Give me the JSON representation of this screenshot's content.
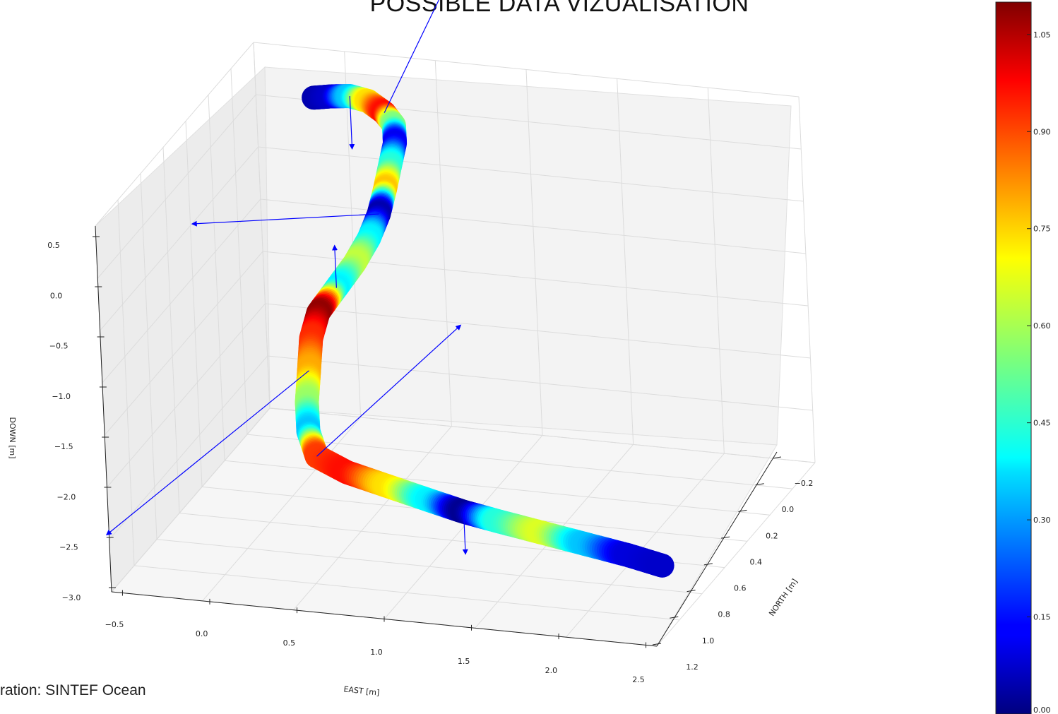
{
  "header": {
    "title": "POSSIBLE DATA VIZUALISATION"
  },
  "footer": {
    "credit": "ration: SINTEF Ocean"
  },
  "chart_data": {
    "type": "line",
    "subtype": "3d-tube-trajectory",
    "title": "POSSIBLE DATA VIZUALISATION",
    "xlabel": "EAST [m]",
    "ylabel": "NORTH [m]",
    "zlabel": "DOWN [m]",
    "x_ticks": [
      "−0.5",
      "0.0",
      "0.5",
      "1.0",
      "1.5",
      "2.0",
      "2.5"
    ],
    "y_ticks": [
      "−0.2",
      "0.0",
      "0.2",
      "0.4",
      "0.6",
      "0.8",
      "1.0",
      "1.2"
    ],
    "z_ticks": [
      "0.5",
      "0.0",
      "−0.5",
      "−1.0",
      "−1.5",
      "−2.0",
      "−2.5",
      "−3.0"
    ],
    "xlim": [
      -0.5,
      2.5
    ],
    "ylim": [
      -0.2,
      1.2
    ],
    "zlim": [
      -3.0,
      0.5
    ],
    "grid": true,
    "colormap": "jet",
    "colorbar": {
      "ticks": [
        "1.05",
        "0.90",
        "0.75",
        "0.60",
        "0.45",
        "0.30",
        "0.15",
        "0.00"
      ],
      "range": [
        0.0,
        1.1
      ]
    },
    "trajectory": [
      {
        "e": -0.05,
        "n": 0.0,
        "d": 0.3,
        "c": 0.05
      },
      {
        "e": 0.05,
        "n": 0.0,
        "d": 0.33,
        "c": 0.08
      },
      {
        "e": 0.15,
        "n": 0.0,
        "d": 0.35,
        "c": 0.35
      },
      {
        "e": 0.25,
        "n": 0.0,
        "d": 0.32,
        "c": 0.72
      },
      {
        "e": 0.35,
        "n": 0.02,
        "d": 0.25,
        "c": 0.95
      },
      {
        "e": 0.42,
        "n": 0.05,
        "d": 0.18,
        "c": 0.55
      },
      {
        "e": 0.44,
        "n": 0.08,
        "d": 0.05,
        "c": 0.12
      },
      {
        "e": 0.42,
        "n": 0.1,
        "d": -0.15,
        "c": 0.45
      },
      {
        "e": 0.4,
        "n": 0.12,
        "d": -0.35,
        "c": 0.75
      },
      {
        "e": 0.38,
        "n": 0.15,
        "d": -0.55,
        "c": 0.05
      },
      {
        "e": 0.34,
        "n": 0.18,
        "d": -0.75,
        "c": 0.4
      },
      {
        "e": 0.28,
        "n": 0.22,
        "d": -0.95,
        "c": 0.62
      },
      {
        "e": 0.2,
        "n": 0.26,
        "d": -1.15,
        "c": 0.4
      },
      {
        "e": 0.12,
        "n": 0.3,
        "d": -1.35,
        "c": 1.08
      },
      {
        "e": 0.1,
        "n": 0.34,
        "d": -1.55,
        "c": 0.92
      },
      {
        "e": 0.12,
        "n": 0.4,
        "d": -1.78,
        "c": 0.78
      },
      {
        "e": 0.14,
        "n": 0.46,
        "d": -2.0,
        "c": 0.58
      },
      {
        "e": 0.18,
        "n": 0.52,
        "d": -2.2,
        "c": 0.35
      },
      {
        "e": 0.26,
        "n": 0.58,
        "d": -2.35,
        "c": 0.9
      },
      {
        "e": 0.45,
        "n": 0.62,
        "d": -2.42,
        "c": 0.95
      },
      {
        "e": 0.7,
        "n": 0.66,
        "d": -2.46,
        "c": 0.72
      },
      {
        "e": 0.95,
        "n": 0.7,
        "d": -2.5,
        "c": 0.4
      },
      {
        "e": 1.15,
        "n": 0.72,
        "d": -2.55,
        "c": 0.02
      },
      {
        "e": 1.35,
        "n": 0.74,
        "d": -2.58,
        "c": 0.45
      },
      {
        "e": 1.6,
        "n": 0.76,
        "d": -2.62,
        "c": 0.65
      },
      {
        "e": 1.85,
        "n": 0.78,
        "d": -2.66,
        "c": 0.35
      },
      {
        "e": 2.1,
        "n": 0.8,
        "d": -2.7,
        "c": 0.1
      },
      {
        "e": 2.3,
        "n": 0.82,
        "d": -2.74,
        "c": 0.08
      }
    ],
    "arrows": [
      {
        "from_index": 2,
        "dir": [
          0.0,
          0.0,
          -0.5
        ]
      },
      {
        "from_index": 4,
        "dir": [
          0.0,
          -1.0,
          0.9
        ]
      },
      {
        "from_index": 9,
        "dir": [
          -0.9,
          0.2,
          0.0
        ]
      },
      {
        "from_index": 12,
        "dir": [
          0.0,
          0.0,
          0.4
        ]
      },
      {
        "from_index": 15,
        "dir": [
          -0.5,
          1.0,
          -0.4
        ]
      },
      {
        "from_index": 18,
        "dir": [
          0.3,
          -0.8,
          0.3
        ]
      },
      {
        "from_index": 22,
        "dir": [
          0.0,
          0.0,
          -0.4
        ]
      }
    ]
  }
}
